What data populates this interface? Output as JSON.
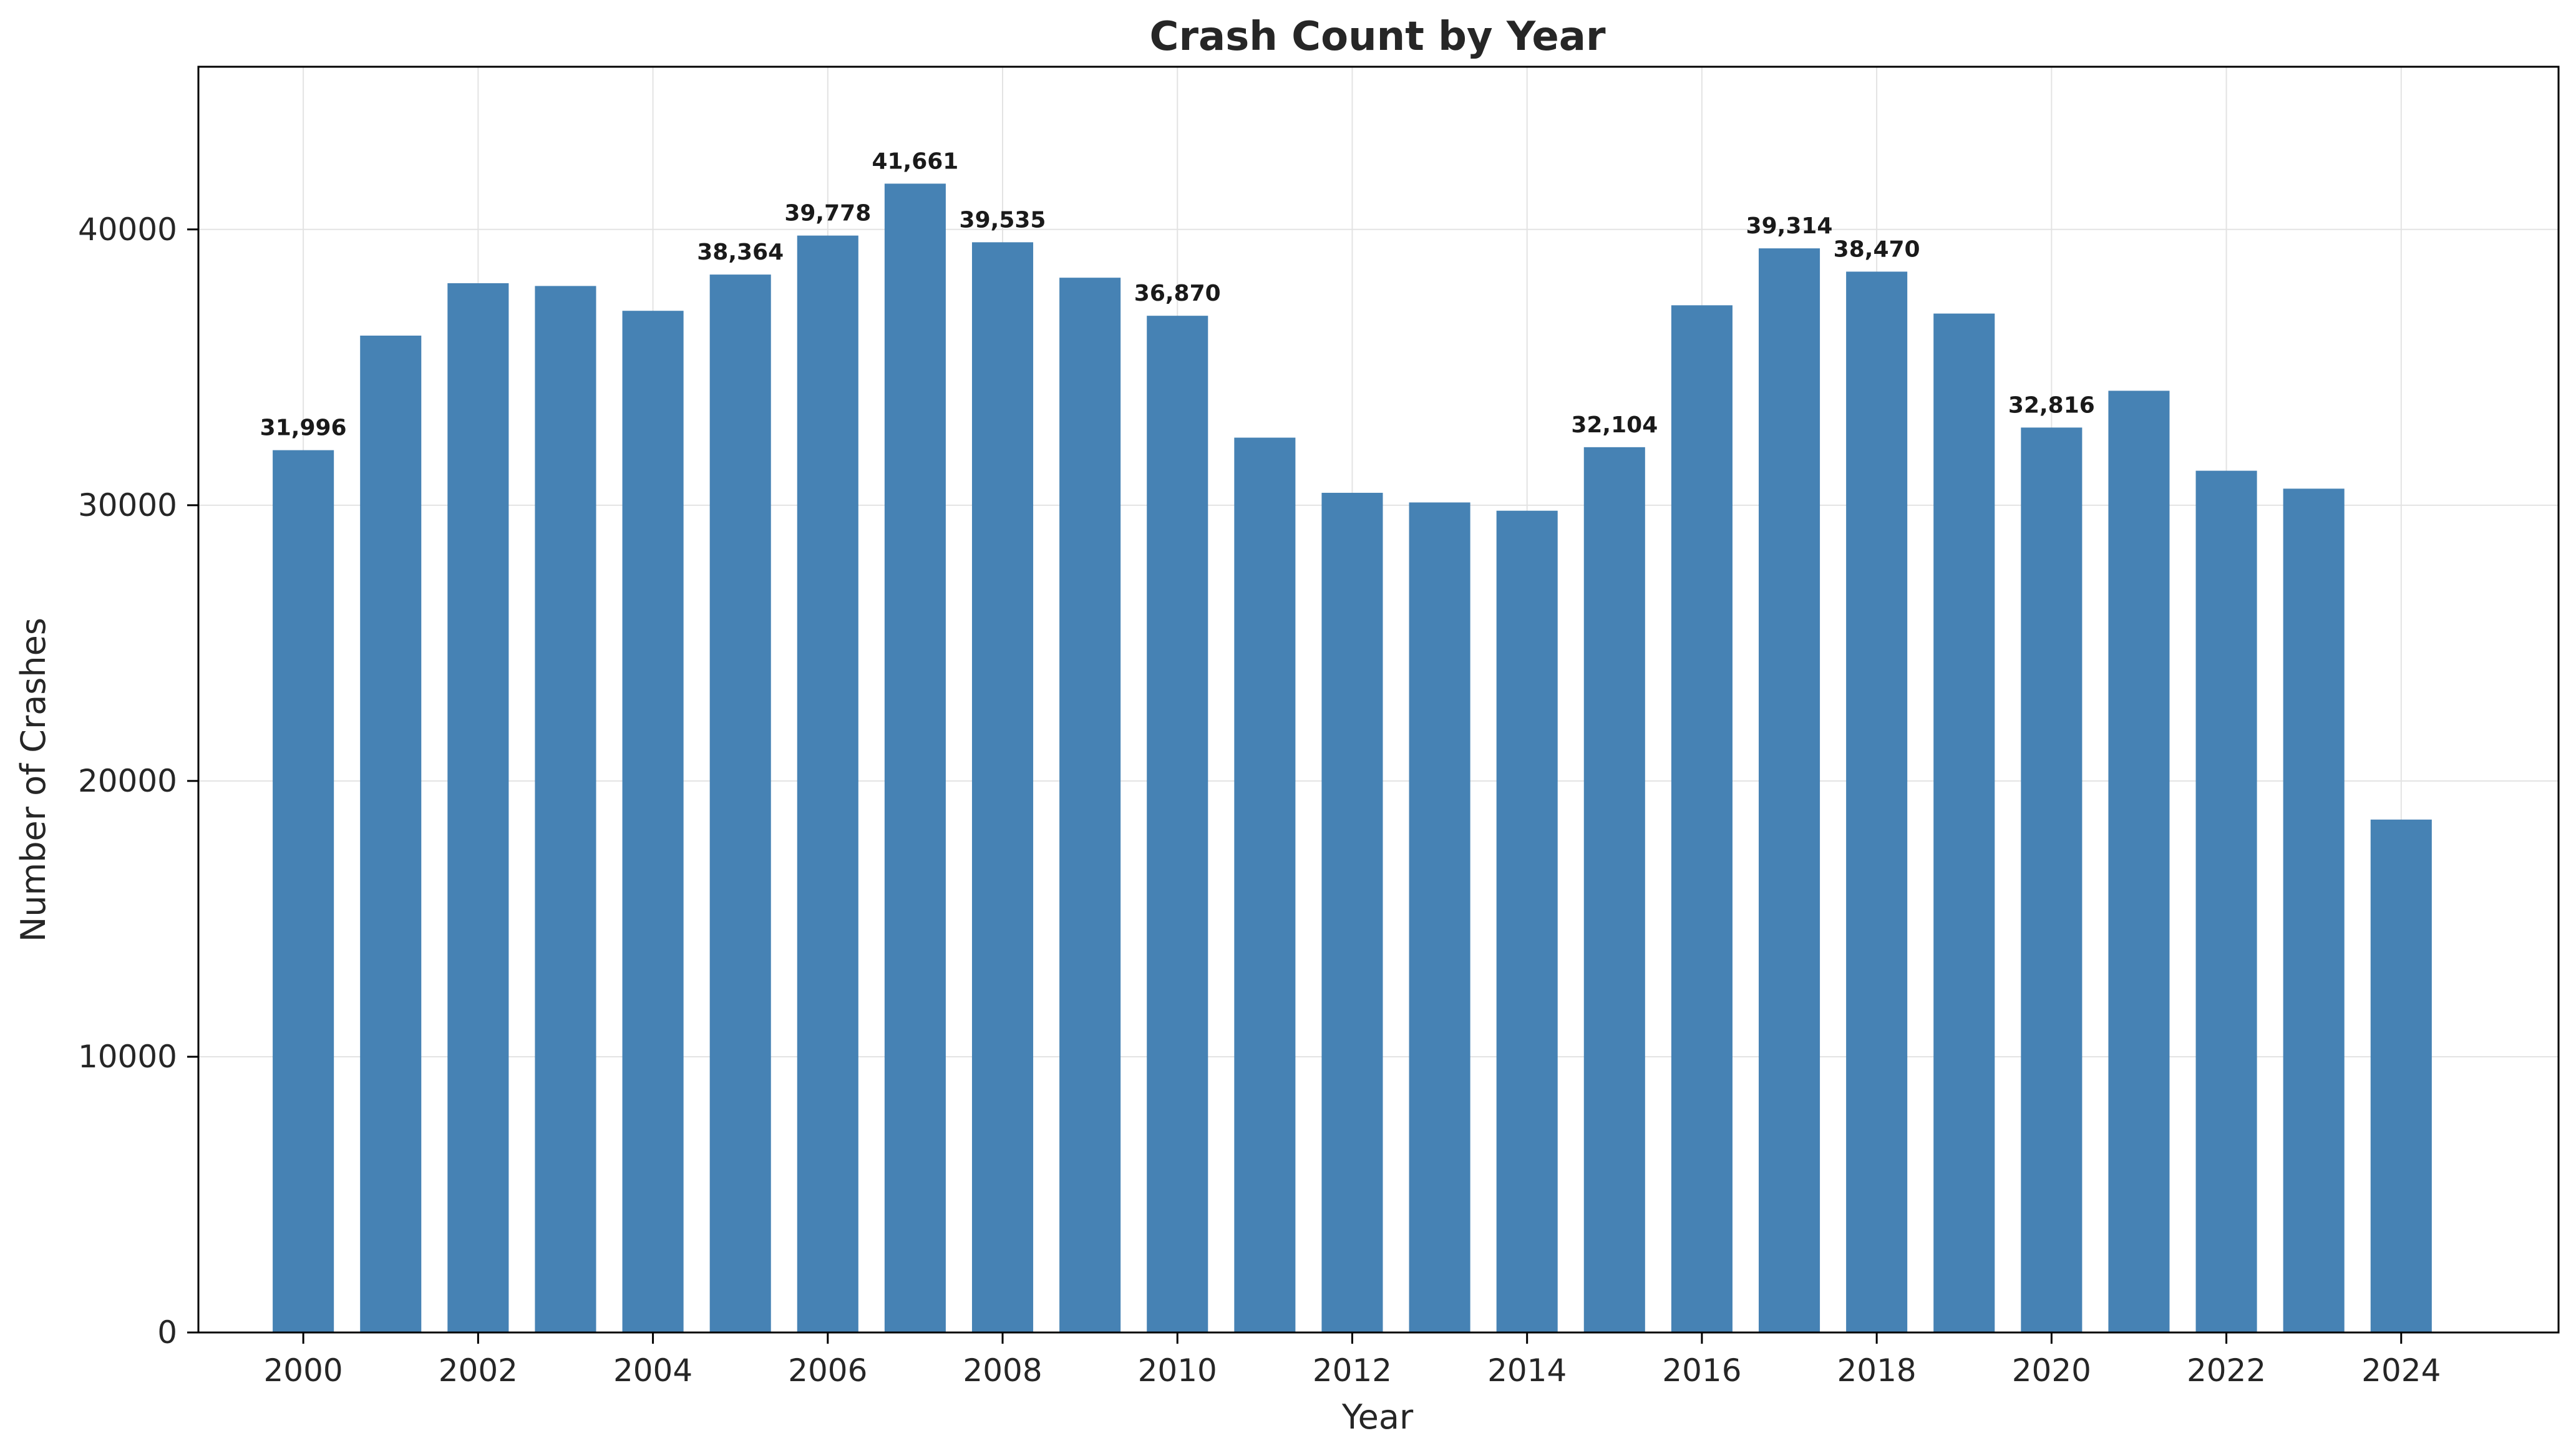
{
  "chart_data": {
    "type": "bar",
    "title": "Crash Count by Year",
    "xlabel": "Year",
    "ylabel": "Number of Crashes",
    "categories": [
      2000,
      2001,
      2002,
      2003,
      2004,
      2005,
      2006,
      2007,
      2008,
      2009,
      2010,
      2011,
      2012,
      2013,
      2014,
      2015,
      2016,
      2017,
      2018,
      2019,
      2020,
      2021,
      2022,
      2023,
      2024
    ],
    "values": [
      31996,
      36150,
      38050,
      37950,
      37050,
      38364,
      39778,
      41661,
      39535,
      38250,
      36870,
      32450,
      30450,
      30100,
      29800,
      32104,
      37250,
      39314,
      38470,
      36950,
      32816,
      34150,
      31250,
      30600,
      18600
    ],
    "data_labels": [
      {
        "year": 2000,
        "text": "31,996"
      },
      {
        "year": 2005,
        "text": "38,364"
      },
      {
        "year": 2006,
        "text": "39,778"
      },
      {
        "year": 2007,
        "text": "41,661"
      },
      {
        "year": 2008,
        "text": "39,535"
      },
      {
        "year": 2010,
        "text": "36,870"
      },
      {
        "year": 2015,
        "text": "32,104"
      },
      {
        "year": 2017,
        "text": "39,314"
      },
      {
        "year": 2018,
        "text": "38,470"
      },
      {
        "year": 2020,
        "text": "32,816"
      }
    ],
    "x_ticks": [
      2000,
      2002,
      2004,
      2006,
      2008,
      2010,
      2012,
      2014,
      2016,
      2018,
      2020,
      2022,
      2024
    ],
    "y_ticks": [
      0,
      10000,
      20000,
      30000,
      40000
    ],
    "xlim": [
      1998.8,
      2025.8
    ],
    "ylim": [
      0,
      45900
    ],
    "grid": true,
    "bar_color": "#4682b4"
  }
}
